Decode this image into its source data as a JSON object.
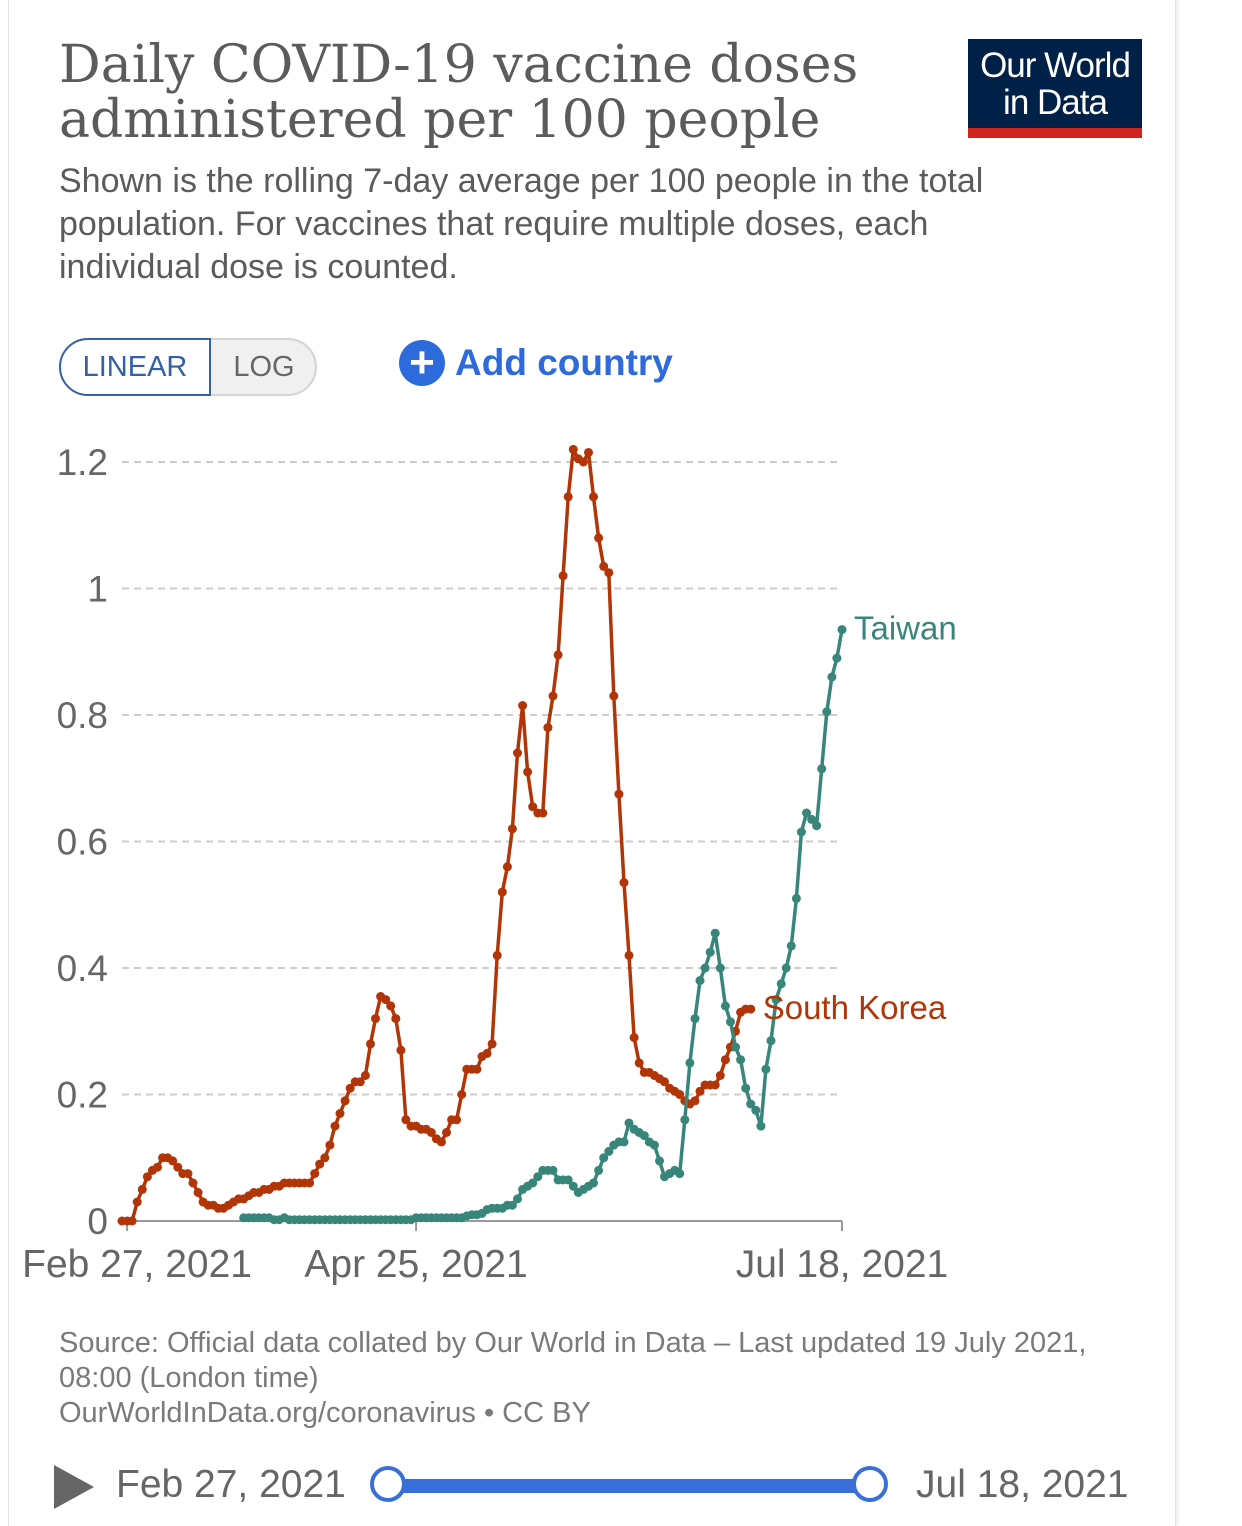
{
  "header": {
    "title": "Daily COVID-19 vaccine doses administered per 100 people",
    "subtitle": "Shown is the rolling 7-day average per 100 people in the total population. For vaccines that require multiple doses, each individual dose is counted.",
    "logo_line1": "Our World",
    "logo_line2": "in Data"
  },
  "controls": {
    "linear_label": "LINEAR",
    "log_label": "LOG",
    "add_country_label": "Add country"
  },
  "chart_data": {
    "type": "line",
    "title": "Daily COVID-19 vaccine doses administered per 100 people",
    "ylim": [
      0,
      1.2
    ],
    "y_ticks": [
      0,
      0.2,
      0.4,
      0.6,
      0.8,
      1,
      1.2
    ],
    "y_tick_labels": [
      "0",
      "0.2",
      "0.4",
      "0.6",
      "0.8",
      "1",
      "1.2"
    ],
    "x_range": [
      "2021-02-27",
      "2021-07-18"
    ],
    "x_tick_labels": [
      "Feb 27, 2021",
      "Apr 25, 2021",
      "Jul 18, 2021"
    ],
    "x_tick_dates": [
      "2021-02-27",
      "2021-04-25",
      "2021-07-18"
    ],
    "grid": "horizontal dashed",
    "series": [
      {
        "name": "South Korea",
        "color": "#b13507",
        "start_date": "2021-02-26",
        "values": [
          0,
          0,
          0,
          0.03,
          0.05,
          0.07,
          0.08,
          0.085,
          0.1,
          0.1,
          0.095,
          0.085,
          0.075,
          0.075,
          0.06,
          0.045,
          0.03,
          0.025,
          0.025,
          0.02,
          0.02,
          0.025,
          0.03,
          0.035,
          0.035,
          0.04,
          0.045,
          0.045,
          0.05,
          0.05,
          0.055,
          0.055,
          0.06,
          0.06,
          0.06,
          0.06,
          0.06,
          0.06,
          0.075,
          0.09,
          0.1,
          0.12,
          0.15,
          0.17,
          0.19,
          0.21,
          0.22,
          0.22,
          0.23,
          0.28,
          0.32,
          0.355,
          0.35,
          0.34,
          0.32,
          0.27,
          0.16,
          0.15,
          0.15,
          0.145,
          0.145,
          0.14,
          0.13,
          0.125,
          0.14,
          0.16,
          0.16,
          0.2,
          0.24,
          0.24,
          0.24,
          0.26,
          0.265,
          0.28,
          0.42,
          0.52,
          0.56,
          0.62,
          0.74,
          0.815,
          0.71,
          0.655,
          0.645,
          0.645,
          0.78,
          0.83,
          0.895,
          1.02,
          1.145,
          1.22,
          1.205,
          1.2,
          1.215,
          1.145,
          1.08,
          1.035,
          1.025,
          0.83,
          0.675,
          0.535,
          0.42,
          0.29,
          0.25,
          0.235,
          0.235,
          0.23,
          0.225,
          0.22,
          0.21,
          0.205,
          0.2,
          0.19,
          0.185,
          0.19,
          0.205,
          0.215,
          0.215,
          0.215,
          0.23,
          0.255,
          0.275,
          0.3,
          0.33,
          0.335,
          0.335
        ]
      },
      {
        "name": "Taiwan",
        "color": "#38857a",
        "start_date": "2021-03-22",
        "values": [
          0.005,
          0.005,
          0.005,
          0.005,
          0.005,
          0.005,
          0.002,
          0.002,
          0.005,
          0.002,
          0.002,
          0.002,
          0.002,
          0.002,
          0.002,
          0.002,
          0.002,
          0.002,
          0.002,
          0.002,
          0.002,
          0.002,
          0.002,
          0.002,
          0.002,
          0.002,
          0.002,
          0.002,
          0.002,
          0.002,
          0.002,
          0.002,
          0.002,
          0.002,
          0.005,
          0.005,
          0.005,
          0.005,
          0.005,
          0.005,
          0.005,
          0.005,
          0.005,
          0.005,
          0.008,
          0.01,
          0.01,
          0.012,
          0.018,
          0.02,
          0.02,
          0.02,
          0.025,
          0.025,
          0.035,
          0.05,
          0.055,
          0.06,
          0.07,
          0.08,
          0.08,
          0.08,
          0.065,
          0.065,
          0.065,
          0.055,
          0.045,
          0.05,
          0.055,
          0.06,
          0.08,
          0.1,
          0.11,
          0.12,
          0.125,
          0.125,
          0.155,
          0.145,
          0.14,
          0.135,
          0.125,
          0.12,
          0.095,
          0.07,
          0.075,
          0.08,
          0.075,
          0.16,
          0.25,
          0.32,
          0.38,
          0.4,
          0.425,
          0.455,
          0.4,
          0.34,
          0.315,
          0.275,
          0.255,
          0.21,
          0.185,
          0.175,
          0.15,
          0.24,
          0.285,
          0.35,
          0.375,
          0.4,
          0.435,
          0.51,
          0.615,
          0.645,
          0.635,
          0.625,
          0.715,
          0.805,
          0.86,
          0.89,
          0.935
        ]
      }
    ]
  },
  "footer": {
    "source_line1": "Source: Official data collated by Our World in Data – Last updated 19 July 2021, 08:00 (London time)",
    "source_line2": "OurWorldInData.org/coronavirus • CC BY"
  },
  "timeline": {
    "start_label": "Feb 27, 2021",
    "end_label": "Jul 18, 2021"
  },
  "colors": {
    "accent_blue": "#2d6adb",
    "logo_bg": "#002147",
    "logo_bar": "#ce261e",
    "grid": "#cccccc",
    "text": "#5b5b5b"
  }
}
